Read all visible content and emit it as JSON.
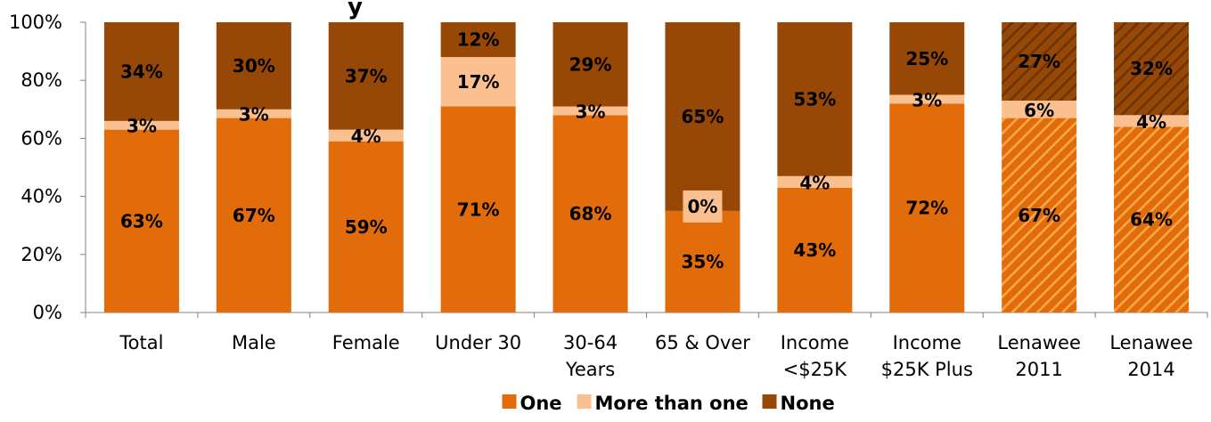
{
  "chart_data": {
    "type": "bar",
    "stacked": true,
    "title": "y",
    "categories": [
      "Total",
      "Male",
      "Female",
      "Under 30",
      "30-64 Years",
      "65 & Over",
      "Income <$25K",
      "Income $25K Plus",
      "Lenawee 2011",
      "Lenawee 2014"
    ],
    "category_lines": [
      [
        "Total"
      ],
      [
        "Male"
      ],
      [
        "Female"
      ],
      [
        "Under 30"
      ],
      [
        "30-64",
        "Years"
      ],
      [
        "65 & Over"
      ],
      [
        "Income",
        "<$25K"
      ],
      [
        "Income",
        "$25K Plus"
      ],
      [
        "Lenawee",
        "2011"
      ],
      [
        "Lenawee",
        "2014"
      ]
    ],
    "series": [
      {
        "name": "One",
        "color": "#E36C0A",
        "values": [
          63,
          67,
          59,
          71,
          68,
          35,
          43,
          72,
          67,
          64
        ]
      },
      {
        "name": "More than one",
        "color": "#FAC090",
        "values": [
          3,
          3,
          4,
          17,
          3,
          0,
          4,
          3,
          6,
          4
        ]
      },
      {
        "name": "None",
        "color": "#974706",
        "values": [
          34,
          30,
          37,
          12,
          29,
          65,
          53,
          25,
          27,
          32
        ]
      }
    ],
    "hatched_categories": [
      "Lenawee 2011",
      "Lenawee 2014"
    ],
    "ylim": [
      0,
      100
    ],
    "yticks": [
      "0%",
      "20%",
      "40%",
      "60%",
      "80%",
      "100%"
    ],
    "value_suffix": "%",
    "legend_position": "bottom",
    "grid": false
  }
}
